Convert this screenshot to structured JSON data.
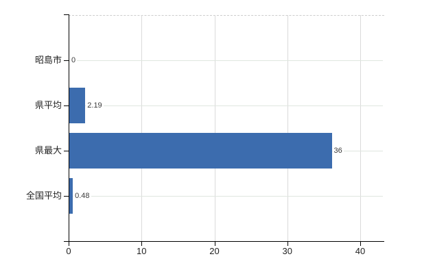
{
  "chart_data": {
    "type": "bar",
    "orientation": "horizontal",
    "title": "",
    "categories": [
      "昭島市",
      "県平均",
      "県最大",
      "全国平均"
    ],
    "values": [
      0,
      2.19,
      36,
      0.48
    ],
    "value_labels": [
      "0",
      "2.19",
      "36",
      "0.48"
    ],
    "x_ticks": [
      "0",
      "10",
      "20",
      "30",
      "40"
    ],
    "x_tick_values": [
      0,
      10,
      20,
      30,
      40
    ],
    "xlim": [
      0,
      43.2
    ],
    "grid": true,
    "legend": false,
    "colors": {
      "bar": "#3c6cae",
      "axis": "#000000",
      "h_gridline": "#dfe6df",
      "v_gridline": "#dadada",
      "plot_top_border": "#cccccc",
      "category_text": "#1f1f1f",
      "value_text": "#3a3a3a",
      "tick_text": "#1f1f1f",
      "background": "#ffffff"
    }
  }
}
